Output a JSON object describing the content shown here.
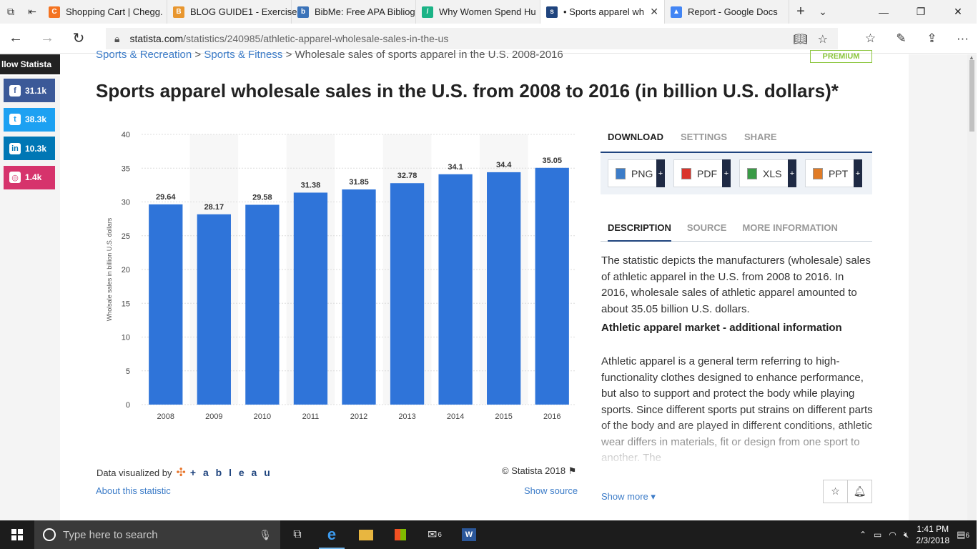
{
  "browser": {
    "tabs": [
      {
        "title": "Shopping Cart | Chegg.",
        "fav_color": "#f47321",
        "fav_char": "C"
      },
      {
        "title": "BLOG GUIDE1 - Exercise",
        "fav_color": "#e8962e",
        "fav_char": "B"
      },
      {
        "title": "BibMe: Free APA Bibliog",
        "fav_color": "#3b73b9",
        "fav_char": "b"
      },
      {
        "title": "Why Women Spend Hu",
        "fav_color": "#1bb386",
        "fav_char": "/"
      },
      {
        "title": "• Sports apparel wh",
        "fav_color": "#1f447e",
        "fav_char": "s",
        "active": true
      },
      {
        "title": "Report - Google Docs",
        "fav_color": "#4285f4",
        "fav_char": "▲"
      }
    ],
    "url_domain": "statista.com",
    "url_path": "/statistics/240985/athletic-apparel-wholesale-sales-in-the-us"
  },
  "page": {
    "breadcrumb": {
      "items": [
        "Sports & Recreation",
        "Sports & Fitness"
      ],
      "sep": ">",
      "current": "Wholesale sales of sports apparel in the U.S. 2008-2016"
    },
    "premium_label": "PREMIUM",
    "title": "Sports apparel wholesale sales in the U.S. from 2008 to 2016 (in billion U.S. dollars)*",
    "follow_label": "llow Statista",
    "social": [
      {
        "name": "facebook",
        "count": "31.1k",
        "color": "#3b5998",
        "char": "f"
      },
      {
        "name": "twitter",
        "count": "38.3k",
        "color": "#1da1f2",
        "char": "t"
      },
      {
        "name": "linkedin",
        "count": "10.3k",
        "color": "#0077b5",
        "char": "in"
      },
      {
        "name": "instagram",
        "count": "1.4k",
        "color": "#d6336c",
        "char": "◎"
      }
    ],
    "footer": {
      "data_visualized_by": "Data visualized by",
      "tableau": "+ a b l e a u",
      "copyright": "© Statista 2018",
      "about": "About this statistic",
      "show_source": "Show source"
    },
    "right_panel": {
      "tabs": [
        "DOWNLOAD",
        "SETTINGS",
        "SHARE"
      ],
      "downloads": [
        {
          "label": "PNG",
          "color": "#3c7cc8"
        },
        {
          "label": "PDF",
          "color": "#d9342b"
        },
        {
          "label": "XLS",
          "color": "#3a9b46"
        },
        {
          "label": "PPT",
          "color": "#e07b26"
        }
      ],
      "desc_tabs": [
        "DESCRIPTION",
        "SOURCE",
        "MORE INFORMATION"
      ],
      "description": "The statistic depicts the manufacturers (wholesale) sales of athletic apparel in the U.S. from 2008 to 2016. In 2016, wholesale sales of athletic apparel amounted to about 35.05 billion U.S. dollars.",
      "subheading": "Athletic apparel market - additional information",
      "more_text": "Athletic apparel is a general term referring to high-functionality clothes designed to enhance performance, but also to support and protect the body while playing sports. Since different sports put strains on different parts of the body and are played in different conditions, athletic wear differs in materials, fit or design from one sport to another. The",
      "show_more": "Show more ▾"
    }
  },
  "taskbar": {
    "search_placeholder": "Type here to search",
    "time": "1:41 PM",
    "date": "2/3/2018",
    "notif_count": "6",
    "mail_badge": "6"
  },
  "chart_data": {
    "type": "bar",
    "categories": [
      "2008",
      "2009",
      "2010",
      "2011",
      "2012",
      "2013",
      "2014",
      "2015",
      "2016"
    ],
    "values": [
      29.64,
      28.17,
      29.58,
      31.38,
      31.85,
      32.78,
      34.1,
      34.4,
      35.05
    ],
    "ylabel": "Wholsale sales in billion U.S. dollars",
    "ylim": [
      0,
      40
    ],
    "yticks": [
      0,
      5,
      10,
      15,
      20,
      25,
      30,
      35,
      40
    ],
    "bar_color": "#2f74d9",
    "grid": true
  }
}
